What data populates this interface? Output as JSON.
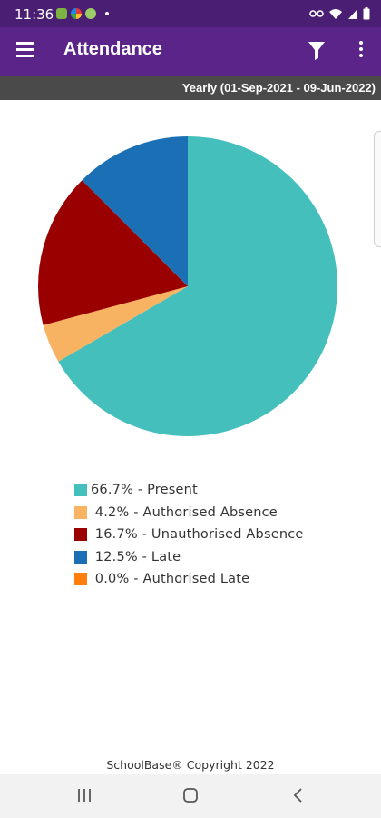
{
  "status_bar": {
    "time": "11:36"
  },
  "app_bar": {
    "title": "Attendance"
  },
  "period": {
    "label": "Yearly (01-Sep-2021 - 09-Jun-2022)"
  },
  "chart_data": {
    "type": "pie",
    "slices": [
      {
        "label": "66.7% - Present",
        "value": 66.7,
        "color": "#45bfbc"
      },
      {
        "label": "4.2% - Authorised Absence",
        "value": 4.2,
        "color": "#f7b262"
      },
      {
        "label": "16.7% - Unauthorised Absence",
        "value": 16.7,
        "color": "#9a0000"
      },
      {
        "label": "12.5% - Late",
        "value": 12.5,
        "color": "#1b6fb5"
      },
      {
        "label": "0.0% - Authorised Late",
        "value": 0.0,
        "color": "#ff7f0e"
      }
    ],
    "legend_placement": "bottom"
  },
  "legend": {
    "items": [
      {
        "label": "66.7% - Present",
        "color": "#45bfbc"
      },
      {
        "label": " 4.2% - Authorised Absence",
        "color": "#f7b262"
      },
      {
        "label": " 16.7% - Unauthorised Absence",
        "color": "#9a0000"
      },
      {
        "label": " 12.5% - Late",
        "color": "#1b6fb5"
      },
      {
        "label": " 0.0% - Authorised Late",
        "color": "#ff7f0e"
      }
    ]
  },
  "footer": {
    "copyright": "SchoolBase® Copyright 2022"
  },
  "colors": {
    "status_bar": "#4a1f73",
    "app_bar": "#5b2489",
    "period_bar": "#4a4a4a"
  }
}
